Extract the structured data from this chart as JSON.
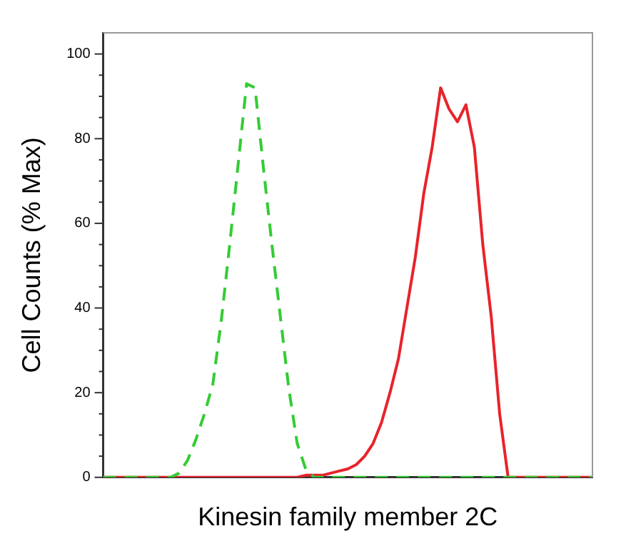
{
  "chart_data": {
    "type": "line",
    "xlabel": "Kinesin family member 2C",
    "ylabel": "Cell Counts (% Max)",
    "categories": [
      null,
      null,
      null,
      null,
      null,
      null,
      null,
      null,
      null,
      null,
      null,
      null,
      null,
      null,
      null,
      null,
      null,
      null,
      null,
      null,
      null,
      null,
      null,
      null,
      null,
      null,
      null,
      null,
      null,
      null,
      null,
      null,
      null,
      null,
      null,
      null,
      null,
      null,
      null,
      null,
      null,
      null,
      null,
      null,
      null,
      null,
      null,
      null,
      null,
      null,
      null,
      null,
      null,
      null,
      null,
      null,
      null,
      null,
      null
    ],
    "series": [
      {
        "color": "#33cc33",
        "line_style": "dashed",
        "values": [
          0,
          0,
          0,
          0,
          0,
          0,
          0,
          0,
          0,
          1,
          4,
          9,
          15,
          22,
          37,
          55,
          74,
          93,
          92,
          73,
          55,
          38,
          21,
          8,
          2,
          0,
          0,
          0,
          0,
          0,
          0,
          0,
          0,
          0,
          0,
          0,
          0,
          0,
          0,
          0,
          0,
          0,
          0,
          0,
          0,
          0,
          0,
          0,
          0,
          0,
          0,
          0,
          0,
          0,
          0,
          0,
          0,
          0,
          0
        ]
      },
      {
        "color": "#e8232b",
        "line_style": "solid",
        "values": [
          0,
          0,
          0,
          0,
          0,
          0,
          0,
          0,
          0,
          0,
          0,
          0,
          0,
          0,
          0,
          0,
          0,
          0,
          0,
          0,
          0,
          0,
          0,
          0,
          0.5,
          0.5,
          0.5,
          1,
          1.5,
          2,
          3,
          5,
          8,
          13,
          20,
          28,
          40,
          52,
          67,
          78,
          92,
          87,
          84,
          88,
          78,
          55,
          38,
          15,
          0,
          0,
          0,
          0,
          0,
          0,
          0,
          0,
          0,
          0,
          0
        ]
      }
    ],
    "ylim": [
      0,
      105
    ],
    "yticks": [
      0,
      {
        "value": 5,
        "label": null
      },
      {
        "value": 10,
        "label": null
      },
      {
        "value": 15,
        "label": null
      },
      20,
      {
        "value": 25,
        "label": null
      },
      {
        "value": 30,
        "label": null
      },
      {
        "value": 35,
        "label": null
      },
      40,
      {
        "value": 45,
        "label": null
      },
      {
        "value": 50,
        "label": null
      },
      {
        "value": 55,
        "label": null
      },
      60,
      {
        "value": 65,
        "label": null
      },
      {
        "value": 70,
        "label": null
      },
      {
        "value": 75,
        "label": null
      },
      80,
      {
        "value": 85,
        "label": null
      },
      {
        "value": 90,
        "label": null
      },
      {
        "value": 95,
        "label": null
      },
      100
    ],
    "tick_labels": "y",
    "marker": "none"
  }
}
